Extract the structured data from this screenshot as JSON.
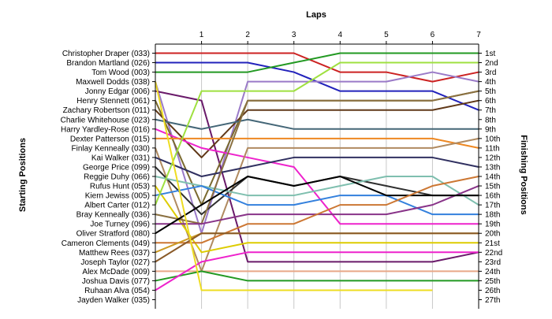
{
  "chart_data": {
    "type": "line",
    "title": "Laps",
    "ylabel_left": "Starting Positions",
    "ylabel_right": "Finishing Positions",
    "x": [
      0,
      1,
      2,
      3,
      4,
      5,
      6,
      7
    ],
    "x_tick_labels": [
      "1",
      "2",
      "3",
      "4",
      "5",
      "6",
      "7"
    ],
    "finishing_positions": [
      "1st",
      "2nd",
      "3rd",
      "4th",
      "5th",
      "6th",
      "7th",
      "8th",
      "9th",
      "10th",
      "11th",
      "12th",
      "13th",
      "14th",
      "15th",
      "16th",
      "17th",
      "18th",
      "19th",
      "20th",
      "21st",
      "22nd",
      "23rd",
      "24th",
      "25th",
      "26th",
      "27th"
    ],
    "y_reversed": true,
    "ylim": [
      1,
      27
    ],
    "grid": "vertical",
    "series": [
      {
        "name": "Christopher Draper (033)",
        "color": "#cc2222",
        "positions": [
          1,
          1,
          1,
          1,
          3,
          3,
          4,
          3
        ]
      },
      {
        "name": "Brandon Martland (026)",
        "color": "#2222bb",
        "positions": [
          2,
          2,
          2,
          3,
          5,
          5,
          5,
          7
        ]
      },
      {
        "name": "Tom Wood (003)",
        "color": "#229922",
        "positions": [
          3,
          3,
          3,
          2,
          1,
          1,
          1,
          1
        ]
      },
      {
        "name": "Maxwell Dodds (038)",
        "color": "#9a7ac8",
        "positions": [
          4,
          20,
          4,
          4,
          4,
          4,
          3,
          4
        ]
      },
      {
        "name": "Jonny Edgar (006)",
        "color": "#6a1a6a",
        "positions": [
          5,
          6,
          23,
          23,
          23,
          23,
          23,
          22
        ]
      },
      {
        "name": "Henry Stennett (061)",
        "color": "#7a6a30",
        "positions": [
          6,
          17,
          6,
          6,
          6,
          6,
          6,
          5
        ]
      },
      {
        "name": "Zachary Robertson (011)",
        "color": "#603818",
        "positions": [
          7,
          12,
          7,
          7,
          7,
          7,
          7,
          6
        ]
      },
      {
        "name": "Charlie Whitehouse (023)",
        "color": "#446677",
        "positions": [
          8,
          9,
          8,
          9,
          9,
          9,
          9,
          9
        ]
      },
      {
        "name": "Harry Yardley-Rose (016)",
        "color": "#ee22cc",
        "positions": [
          9,
          11,
          12,
          13,
          19,
          19,
          19,
          19
        ]
      },
      {
        "name": "Dexter Patterson (015)",
        "color": "#ee8822",
        "positions": [
          10,
          10,
          10,
          10,
          10,
          10,
          10,
          11
        ]
      },
      {
        "name": "Finlay Kenneally (030)",
        "color": "#b08a60",
        "positions": [
          11,
          24,
          11,
          11,
          11,
          11,
          11,
          10
        ]
      },
      {
        "name": "Kai Walker (031)",
        "color": "#303060",
        "positions": [
          12,
          14,
          13,
          12,
          12,
          12,
          12,
          13
        ]
      },
      {
        "name": "George Price (099)",
        "color": "#2f2f2f",
        "positions": [
          13,
          18,
          14,
          15,
          14,
          15,
          16,
          16
        ]
      },
      {
        "name": "Reggie Duhy (066)",
        "color": "#7fbfaf",
        "positions": [
          14,
          15,
          16,
          16,
          15,
          14,
          14,
          17
        ]
      },
      {
        "name": "Rufus Hunt (053)",
        "color": "#ddcc00",
        "positions": [
          15,
          22,
          21,
          21,
          21,
          21,
          21,
          21
        ]
      },
      {
        "name": "Kiern Jewiss (005)",
        "color": "#3380dd",
        "positions": [
          16,
          15,
          17,
          17,
          16,
          16,
          18,
          18
        ]
      },
      {
        "name": "Albert Carter (012)",
        "color": "#9fe040",
        "positions": [
          17,
          5,
          5,
          5,
          2,
          2,
          2,
          2
        ]
      },
      {
        "name": "Bray Kenneally (036)",
        "color": "#8a7040",
        "positions": [
          18,
          19,
          6,
          6,
          6,
          6,
          6,
          5
        ]
      },
      {
        "name": "Joe Turney (096)",
        "color": "#883388",
        "positions": [
          19,
          19,
          18,
          18,
          18,
          18,
          17,
          15
        ]
      },
      {
        "name": "Oliver Stratford (080)",
        "color": "#000000",
        "positions": [
          20,
          17,
          14,
          15,
          14,
          16,
          16,
          16
        ]
      },
      {
        "name": "Cameron Clements (049)",
        "color": "#cc7733",
        "positions": [
          21,
          21,
          19,
          19,
          17,
          17,
          15,
          14
        ]
      },
      {
        "name": "Matthew Rees (037)",
        "color": "#cc9922",
        "positions": [
          22,
          20,
          20,
          20,
          20,
          20,
          20,
          20
        ]
      },
      {
        "name": "Joseph Taylor (027)",
        "color": "#8a5a28",
        "positions": [
          23,
          20,
          20,
          20,
          20,
          20,
          20,
          20
        ]
      },
      {
        "name": "Alex McDade (009)",
        "color": "#e8a888",
        "positions": [
          24,
          24,
          24,
          24,
          24,
          24,
          24,
          24
        ]
      },
      {
        "name": "Joshua Davis (077)",
        "color": "#229922",
        "positions": [
          25,
          24,
          25,
          25,
          25,
          25,
          25,
          25
        ]
      },
      {
        "name": "Ruhaan Alva (054)",
        "color": "#ee22cc",
        "positions": [
          26,
          23,
          22,
          22,
          22,
          22,
          22,
          22
        ]
      },
      {
        "name": "Jayden Walker (035)",
        "color": "#eedd22",
        "positions": [
          4,
          26,
          26,
          26,
          26,
          26,
          26,
          null
        ]
      }
    ]
  }
}
